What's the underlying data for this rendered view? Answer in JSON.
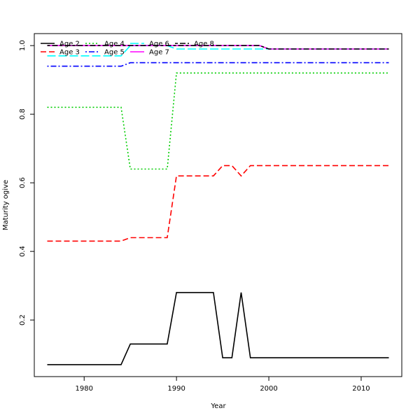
{
  "chart_data": {
    "type": "line",
    "xlabel": "Year",
    "ylabel": "Maturity ogive",
    "xlim": [
      1974.6,
      2014.4
    ],
    "ylim": [
      0.035,
      1.035
    ],
    "x_ticks": [
      1980,
      1990,
      2000,
      2010
    ],
    "x_tick_labels": [
      "1980",
      "1990",
      "2000",
      "2010"
    ],
    "y_ticks": [
      0.2,
      0.4,
      0.6,
      0.8,
      1.0
    ],
    "y_tick_labels": [
      "0.2",
      "0.4",
      "0.6",
      "0.8",
      "1.0"
    ],
    "legend_position": "top-left",
    "series": [
      {
        "name": "Age 2",
        "color": "#000000",
        "dash": "solid",
        "points": [
          [
            1976,
            0.07
          ],
          [
            1984,
            0.07
          ],
          [
            1985,
            0.13
          ],
          [
            1989,
            0.13
          ],
          [
            1990,
            0.28
          ],
          [
            1994,
            0.28
          ],
          [
            1995,
            0.09
          ],
          [
            1996,
            0.09
          ],
          [
            1997,
            0.28
          ],
          [
            1998,
            0.09
          ],
          [
            2013,
            0.09
          ]
        ]
      },
      {
        "name": "Age 3",
        "color": "#ff0000",
        "dash": "dashed",
        "points": [
          [
            1976,
            0.43
          ],
          [
            1984,
            0.43
          ],
          [
            1985,
            0.44
          ],
          [
            1989,
            0.44
          ],
          [
            1990,
            0.62
          ],
          [
            1994,
            0.62
          ],
          [
            1995,
            0.65
          ],
          [
            1996,
            0.65
          ],
          [
            1997,
            0.62
          ],
          [
            1998,
            0.65
          ],
          [
            2013,
            0.65
          ]
        ]
      },
      {
        "name": "Age 4",
        "color": "#00cd00",
        "dash": "dotted",
        "points": [
          [
            1976,
            0.82
          ],
          [
            1984,
            0.82
          ],
          [
            1985,
            0.64
          ],
          [
            1989,
            0.64
          ],
          [
            1990,
            0.92
          ],
          [
            2013,
            0.92
          ]
        ]
      },
      {
        "name": "Age 5",
        "color": "#0000ff",
        "dash": "dotdash",
        "points": [
          [
            1976,
            0.94
          ],
          [
            1984,
            0.94
          ],
          [
            1985,
            0.95
          ],
          [
            2013,
            0.95
          ]
        ]
      },
      {
        "name": "Age 6",
        "color": "#00ffff",
        "dash": "longdash",
        "points": [
          [
            1976,
            0.97
          ],
          [
            1984,
            0.97
          ],
          [
            1985,
            1.0
          ],
          [
            1989,
            1.0
          ],
          [
            1990,
            0.99
          ],
          [
            2013,
            0.99
          ]
        ]
      },
      {
        "name": "Age 7",
        "color": "#ff00ff",
        "dash": "solid",
        "points": [
          [
            1976,
            1.0
          ],
          [
            1999,
            1.0
          ],
          [
            2000,
            0.99
          ],
          [
            2013,
            0.99
          ]
        ]
      },
      {
        "name": "Age 8",
        "color": "#000000",
        "dash": "twodash",
        "points": [
          [
            1976,
            1.0
          ],
          [
            1999,
            1.0
          ],
          [
            2000,
            0.99
          ],
          [
            2013,
            0.99
          ]
        ]
      }
    ]
  }
}
